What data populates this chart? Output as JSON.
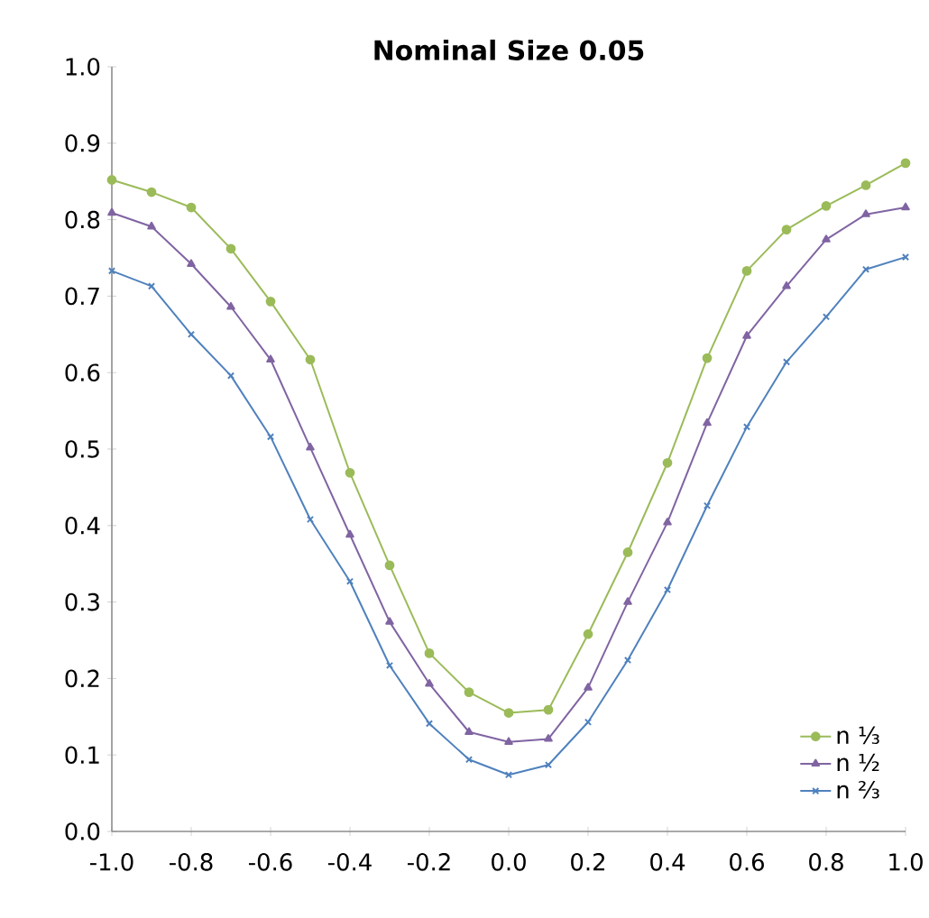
{
  "chart_data": {
    "type": "line",
    "title": "Nominal Size 0.05",
    "x": [
      -1.0,
      -0.9,
      -0.8,
      -0.7,
      -0.6,
      -0.5,
      -0.4,
      -0.3,
      -0.2,
      -0.1,
      0.0,
      0.1,
      0.2,
      0.3,
      0.4,
      0.5,
      0.6,
      0.7,
      0.8,
      0.9,
      1.0
    ],
    "series": [
      {
        "name": "n ⅓",
        "color": "#9bbb59",
        "marker": "circle",
        "values": [
          0.852,
          0.836,
          0.816,
          0.762,
          0.693,
          0.617,
          0.469,
          0.348,
          0.233,
          0.182,
          0.155,
          0.159,
          0.258,
          0.365,
          0.482,
          0.619,
          0.733,
          0.787,
          0.818,
          0.845,
          0.874
        ]
      },
      {
        "name": "n ½",
        "color": "#8064a2",
        "marker": "triangle",
        "values": [
          0.809,
          0.791,
          0.742,
          0.686,
          0.617,
          0.502,
          0.388,
          0.274,
          0.193,
          0.13,
          0.117,
          0.121,
          0.188,
          0.3,
          0.404,
          0.534,
          0.648,
          0.713,
          0.774,
          0.807,
          0.816
        ]
      },
      {
        "name": "n ⅔",
        "color": "#4f81bd",
        "marker": "cross",
        "values": [
          0.733,
          0.713,
          0.65,
          0.596,
          0.516,
          0.408,
          0.327,
          0.217,
          0.141,
          0.094,
          0.074,
          0.087,
          0.143,
          0.224,
          0.316,
          0.426,
          0.529,
          0.614,
          0.673,
          0.735,
          0.751
        ]
      }
    ],
    "xlim": [
      -1.0,
      1.0
    ],
    "xticks": [
      {
        "value": -1.0,
        "label": "-1.0"
      },
      {
        "value": -0.8,
        "label": "-0.8"
      },
      {
        "value": -0.6,
        "label": "-0.6"
      },
      {
        "value": -0.4,
        "label": "-0.4"
      },
      {
        "value": -0.2,
        "label": "-0.2"
      },
      {
        "value": 0.0,
        "label": "0.0"
      },
      {
        "value": 0.2,
        "label": "0.2"
      },
      {
        "value": 0.4,
        "label": "0.4"
      },
      {
        "value": 0.6,
        "label": "0.6"
      },
      {
        "value": 0.8,
        "label": "0.8"
      },
      {
        "value": 1.0,
        "label": "1.0"
      }
    ],
    "ylim": [
      0.0,
      1.0
    ],
    "yticks": [
      {
        "value": 0.0,
        "label": "0.0"
      },
      {
        "value": 0.1,
        "label": "0.1"
      },
      {
        "value": 0.2,
        "label": "0.2"
      },
      {
        "value": 0.3,
        "label": "0.3"
      },
      {
        "value": 0.4,
        "label": "0.4"
      },
      {
        "value": 0.5,
        "label": "0.5"
      },
      {
        "value": 0.6,
        "label": "0.6"
      },
      {
        "value": 0.7,
        "label": "0.7"
      },
      {
        "value": 0.8,
        "label": "0.8"
      },
      {
        "value": 0.9,
        "label": "0.9"
      },
      {
        "value": 1.0,
        "label": "1.0"
      }
    ],
    "grid": false,
    "legend": "bottom right",
    "line_style": "solid"
  }
}
